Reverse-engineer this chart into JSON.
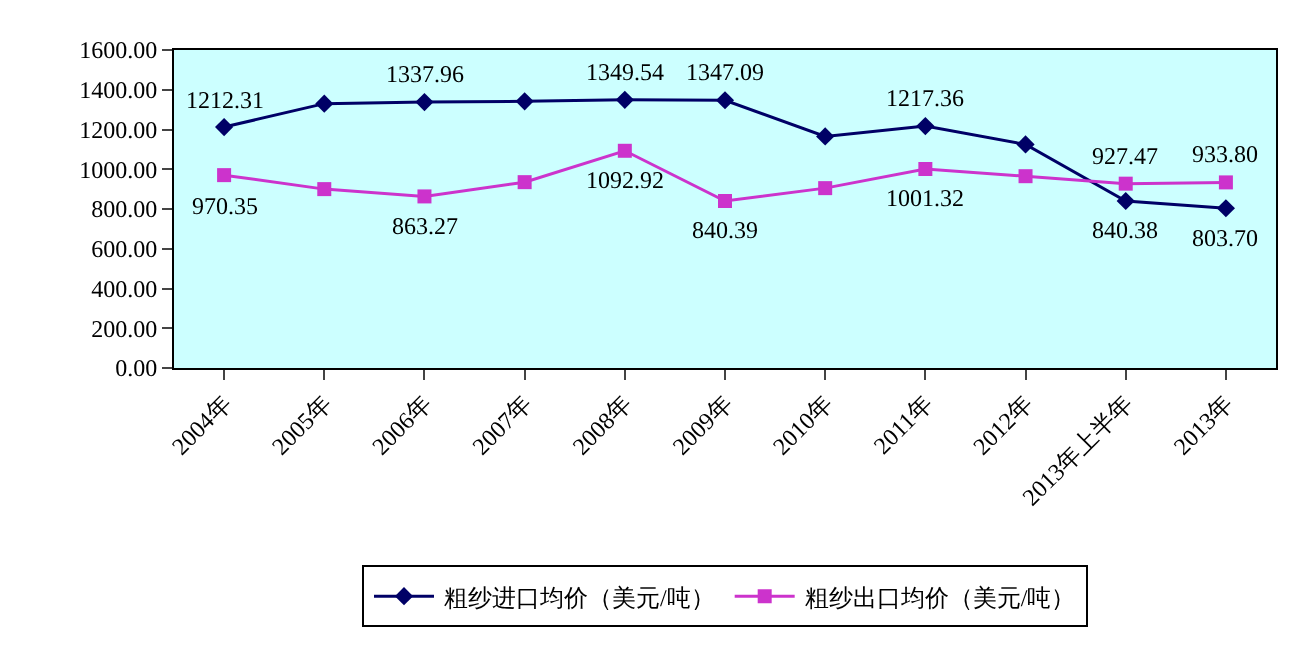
{
  "chart_data": {
    "type": "line",
    "categories": [
      "2004年",
      "2005年",
      "2006年",
      "2007年",
      "2008年",
      "2009年",
      "2010年",
      "2011年",
      "2012年",
      "2013年上半年",
      "2013年"
    ],
    "series": [
      {
        "name": "粗纱进口均价（美元/吨）",
        "color": "#000066",
        "marker": "diamond",
        "values": [
          1212.31,
          1330,
          1337.96,
          1342,
          1349.54,
          1347.09,
          1165,
          1217.36,
          1125,
          840.38,
          803.7
        ],
        "value_labels": [
          "1212.31",
          null,
          "1337.96",
          null,
          "1349.54",
          "1347.09",
          null,
          "1217.36",
          null,
          "840.38",
          "803.70"
        ]
      },
      {
        "name": "粗纱出口均价（美元/吨）",
        "color": "#cc33cc",
        "marker": "square",
        "values": [
          970.35,
          900,
          863.27,
          935,
          1092.92,
          840.39,
          905,
          1001.32,
          965,
          927.47,
          933.8
        ],
        "value_labels": [
          "970.35",
          null,
          "863.27",
          null,
          "1092.92",
          "840.39",
          null,
          "1001.32",
          null,
          "927.47",
          "933.80"
        ]
      }
    ],
    "ylim": [
      0,
      1600
    ],
    "yticks": [
      {
        "value": 0,
        "label": "0.00"
      },
      {
        "value": 200,
        "label": "200.00"
      },
      {
        "value": 400,
        "label": "400.00"
      },
      {
        "value": 600,
        "label": "600.00"
      },
      {
        "value": 800,
        "label": "800.00"
      },
      {
        "value": 1000,
        "label": "1000.00"
      },
      {
        "value": 1200,
        "label": "1200.00"
      },
      {
        "value": 1400,
        "label": "1400.00"
      },
      {
        "value": 1600,
        "label": "1600.00"
      }
    ],
    "grid": false,
    "legend": "bottom",
    "line_style": "solid"
  }
}
